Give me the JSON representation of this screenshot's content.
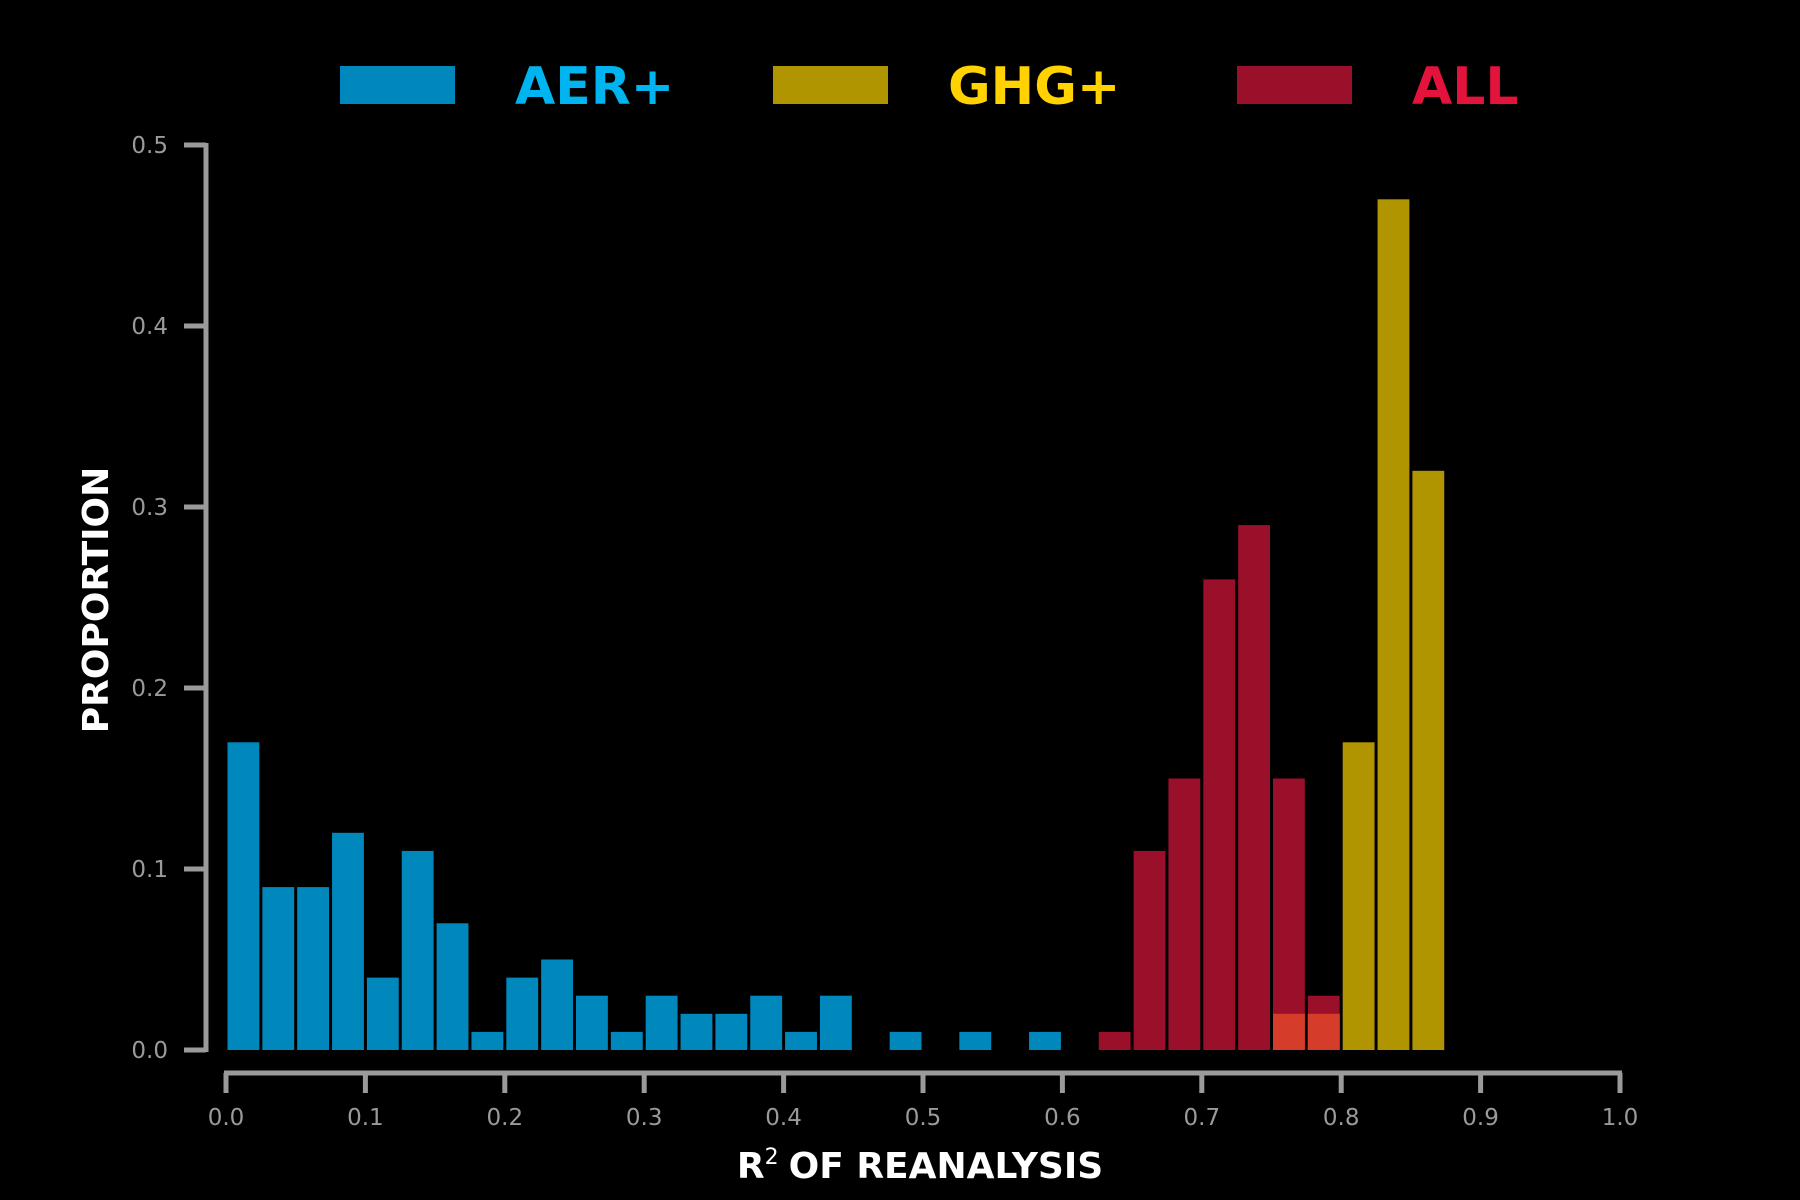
{
  "chart_data": {
    "type": "bar",
    "xlabel": "OF REANALYSIS",
    "xlabel_prefix": "R",
    "xlabel_superscript": "2",
    "ylabel": "PROPORTION",
    "xlim": [
      0.0,
      1.0
    ],
    "ylim": [
      0.0,
      0.5
    ],
    "x_ticks": [
      0.0,
      0.1,
      0.2,
      0.3,
      0.4,
      0.5,
      0.6,
      0.7,
      0.8,
      0.9,
      1.0
    ],
    "x_tick_labels": [
      "0.0",
      "0.1",
      "0.2",
      "0.3",
      "0.4",
      "0.5",
      "0.6",
      "0.7",
      "0.8",
      "0.9",
      "1.0"
    ],
    "y_ticks": [
      0.0,
      0.1,
      0.2,
      0.3,
      0.4,
      0.5
    ],
    "y_tick_labels": [
      "0.0",
      "0.1",
      "0.2",
      "0.3",
      "0.4",
      "0.5"
    ],
    "bin_width": 0.025,
    "grid": false,
    "legend_position": "top",
    "overlap_color": "#d53c2a",
    "series": [
      {
        "name": "AER+",
        "color": "#0088bd",
        "label_color": "#00b5ef",
        "bins": [
          {
            "x": 0.0125,
            "y": 0.17
          },
          {
            "x": 0.0375,
            "y": 0.09
          },
          {
            "x": 0.0625,
            "y": 0.09
          },
          {
            "x": 0.0875,
            "y": 0.12
          },
          {
            "x": 0.1125,
            "y": 0.04
          },
          {
            "x": 0.1375,
            "y": 0.11
          },
          {
            "x": 0.1625,
            "y": 0.07
          },
          {
            "x": 0.1875,
            "y": 0.01
          },
          {
            "x": 0.2125,
            "y": 0.04
          },
          {
            "x": 0.2375,
            "y": 0.05
          },
          {
            "x": 0.2625,
            "y": 0.03
          },
          {
            "x": 0.2875,
            "y": 0.01
          },
          {
            "x": 0.3125,
            "y": 0.03
          },
          {
            "x": 0.3375,
            "y": 0.02
          },
          {
            "x": 0.3625,
            "y": 0.02
          },
          {
            "x": 0.3875,
            "y": 0.03
          },
          {
            "x": 0.4125,
            "y": 0.01
          },
          {
            "x": 0.4375,
            "y": 0.03
          },
          {
            "x": 0.4875,
            "y": 0.01
          },
          {
            "x": 0.5375,
            "y": 0.01
          },
          {
            "x": 0.5875,
            "y": 0.01
          }
        ]
      },
      {
        "name": "GHG+",
        "color": "#b09400",
        "label_color": "#ffd200",
        "bins": [
          {
            "x": 0.7625,
            "y": 0.02
          },
          {
            "x": 0.7875,
            "y": 0.02
          },
          {
            "x": 0.8125,
            "y": 0.17
          },
          {
            "x": 0.8375,
            "y": 0.47
          },
          {
            "x": 0.8625,
            "y": 0.32
          }
        ]
      },
      {
        "name": "ALL",
        "color": "#9a0f2a",
        "label_color": "#e4133c",
        "bins": [
          {
            "x": 0.6375,
            "y": 0.01
          },
          {
            "x": 0.6625,
            "y": 0.11
          },
          {
            "x": 0.6875,
            "y": 0.15
          },
          {
            "x": 0.7125,
            "y": 0.26
          },
          {
            "x": 0.7375,
            "y": 0.29
          },
          {
            "x": 0.7625,
            "y": 0.15
          },
          {
            "x": 0.7875,
            "y": 0.03
          }
        ]
      }
    ]
  }
}
